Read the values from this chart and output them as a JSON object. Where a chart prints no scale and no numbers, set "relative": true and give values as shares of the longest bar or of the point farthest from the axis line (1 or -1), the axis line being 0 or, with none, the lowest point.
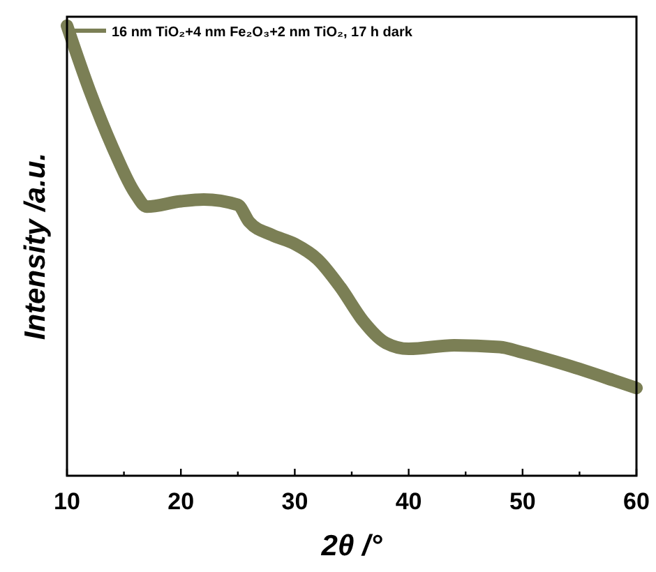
{
  "chart_data": {
    "type": "line",
    "xlabel": "2θ /°",
    "ylabel": "Intensity /a.u.",
    "relative": true,
    "xlim": [
      10,
      60
    ],
    "xticks": [
      10,
      {
        "value": 15,
        "label": null
      },
      20,
      {
        "value": 25,
        "label": null
      },
      30,
      {
        "value": 35,
        "label": null
      },
      40,
      {
        "value": 45,
        "label": null
      },
      50,
      {
        "value": 55,
        "label": null
      },
      60
    ],
    "legend": "top left",
    "grid": false,
    "line_style": "solid",
    "series": [
      {
        "name": "16 nm TiO₂+4 nm Fe₂O₃+2 nm TiO₂, 17 h dark",
        "color": "#7b7f55",
        "x": [
          10,
          12,
          14,
          16,
          17,
          20,
          22,
          25,
          26,
          28,
          30,
          32,
          34,
          36,
          38,
          40,
          44,
          48,
          50,
          54,
          58,
          60
        ],
        "values": [
          1,
          0.855,
          0.73,
          0.627,
          0.598,
          0.61,
          0.614,
          0.602,
          0.564,
          0.535,
          0.515,
          0.481,
          0.419,
          0.344,
          0.295,
          0.282,
          0.29,
          0.286,
          0.274,
          0.245,
          0.212,
          0.195
        ]
      }
    ]
  }
}
